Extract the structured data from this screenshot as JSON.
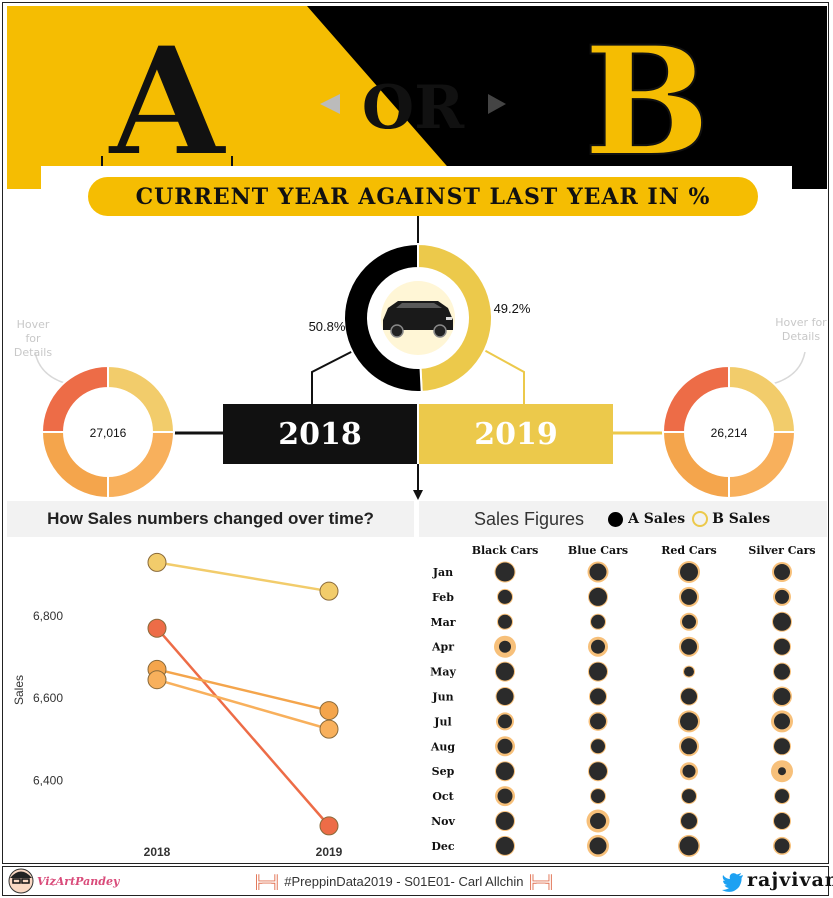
{
  "header": {
    "letter_a": "A",
    "letter_b": "B",
    "or_label": "OR",
    "title": "CURRENT YEAR AGAINST LAST YEAR IN %"
  },
  "colors": {
    "a_color": "#000000",
    "b_color": "#ECC94B",
    "accent": "#F5BD02",
    "black_cars": "#ED6C47",
    "blue_cars": "#F4A54C",
    "red_cars": "#F8B05C",
    "silver_cars": "#F2CC6B"
  },
  "share": {
    "a_pct": "50.8%",
    "b_pct": "49.2%",
    "a_value": 50.8,
    "b_value": 49.2,
    "center_icon": "car-icon"
  },
  "years": {
    "left": "2018",
    "right": "2019"
  },
  "totals": {
    "left_value": "27,016",
    "right_value": "26,214",
    "hover_note": "Hover for Details"
  },
  "line_section": {
    "title": "How Sales numbers changed over time?"
  },
  "dots_section": {
    "title": "Sales Figures",
    "legend_a": "A Sales",
    "legend_b": "B Sales"
  },
  "chart_data": [
    {
      "type": "pie",
      "categories": [
        "A",
        "B"
      ],
      "values": [
        50.8,
        49.2
      ],
      "data_labels": [
        "50.8%",
        "49.2%"
      ]
    },
    {
      "type": "pie",
      "center_label": "27,016",
      "values": [
        25,
        25,
        25,
        25
      ]
    },
    {
      "type": "pie",
      "center_label": "26,214",
      "values": [
        25,
        25,
        25,
        25
      ]
    },
    {
      "type": "line",
      "x": [
        "2018",
        "2019"
      ],
      "ylabel": "Sales",
      "ylim": [
        6280,
        6960
      ],
      "yticks": [
        6400,
        6600,
        6800
      ],
      "ytick_labels": [
        "6,400",
        "6,600",
        "6,800"
      ],
      "series": [
        {
          "values": [
            6930,
            6860
          ]
        },
        {
          "values": [
            6770,
            6290
          ]
        },
        {
          "values": [
            6670,
            6570
          ]
        },
        {
          "values": [
            6645,
            6525
          ]
        }
      ]
    },
    {
      "type": "scatter",
      "categories": [
        "Black Cars",
        "Blue Cars",
        "Red Cars",
        "Silver Cars"
      ],
      "months": [
        "Jan",
        "Feb",
        "Mar",
        "Apr",
        "May",
        "Jun",
        "Jul",
        "Aug",
        "Sep",
        "Oct",
        "Nov",
        "Dec"
      ],
      "a_size": [
        [
          9.5,
          8.5,
          9,
          8
        ],
        [
          7,
          9,
          8,
          7
        ],
        [
          7,
          7,
          7,
          9
        ],
        [
          6,
          7,
          8,
          8
        ],
        [
          9,
          9,
          5,
          8
        ],
        [
          8.5,
          8,
          8,
          8.5
        ],
        [
          7,
          8,
          9,
          8
        ],
        [
          7.5,
          7,
          8,
          8
        ],
        [
          9,
          9,
          6.5,
          4
        ],
        [
          7.5,
          7,
          7,
          7
        ],
        [
          9,
          8,
          8,
          8
        ],
        [
          9,
          8.5,
          9.5,
          7.5
        ]
      ],
      "b_size": [
        [
          10.5,
          10.5,
          11,
          10
        ],
        [
          8,
          10,
          10,
          9
        ],
        [
          8,
          8,
          9,
          10
        ],
        [
          11,
          10,
          10,
          9
        ],
        [
          10,
          10,
          6,
          9
        ],
        [
          9.5,
          9,
          9,
          10
        ],
        [
          9,
          9.5,
          11,
          11
        ],
        [
          10,
          8,
          10,
          9
        ],
        [
          10,
          10,
          9,
          11
        ],
        [
          10,
          8,
          8,
          8
        ],
        [
          10,
          11.5,
          9,
          9
        ],
        [
          10,
          11,
          11,
          9
        ]
      ]
    }
  ],
  "footer": {
    "brand": "VizArtPandey",
    "center_text": "#PreppinData2019 - S01E01- Carl Allchin",
    "handle": "rajvivan",
    "twitter_icon": "twitter-bird-icon"
  }
}
